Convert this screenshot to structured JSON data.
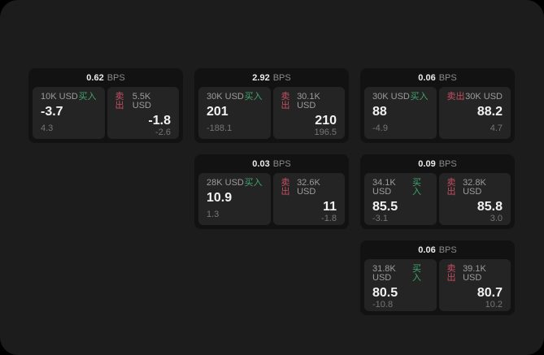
{
  "theme": {
    "surface_background": "#1c1c1c",
    "card_background": "#121212",
    "panel_background": "#242424",
    "buy_color": "#3ea66c",
    "sell_color": "#c34f63",
    "value_text_color": "#f2f2f2",
    "label_text_color": "#9c9c9c",
    "sub_text_color": "#757575",
    "bps_text_color": "#8a8a8a"
  },
  "labels": {
    "bps": "BPS",
    "buy": "买入",
    "sell": "卖出"
  },
  "cards": [
    {
      "row": 1,
      "col": 1,
      "bps": "0.62",
      "buy": {
        "amount": "10K USD",
        "value": "-3.7",
        "sub": "4.3"
      },
      "sell": {
        "amount": "5.5K USD",
        "value": "-1.8",
        "sub": "-2.6"
      }
    },
    {
      "row": 1,
      "col": 2,
      "bps": "2.92",
      "buy": {
        "amount": "30K USD",
        "value": "201",
        "sub": "-188.1"
      },
      "sell": {
        "amount": "30.1K USD",
        "value": "210",
        "sub": "196.5"
      }
    },
    {
      "row": 1,
      "col": 3,
      "bps": "0.06",
      "buy": {
        "amount": "30K USD",
        "value": "88",
        "sub": "-4.9"
      },
      "sell": {
        "amount": "30K USD",
        "value": "88.2",
        "sub": "4.7"
      }
    },
    {
      "row": 2,
      "col": 2,
      "bps": "0.03",
      "buy": {
        "amount": "28K USD",
        "value": "10.9",
        "sub": "1.3"
      },
      "sell": {
        "amount": "32.6K USD",
        "value": "11",
        "sub": "-1.8"
      }
    },
    {
      "row": 2,
      "col": 3,
      "bps": "0.09",
      "buy": {
        "amount": "34.1K USD",
        "value": "85.5",
        "sub": "-3.1"
      },
      "sell": {
        "amount": "32.8K USD",
        "value": "85.8",
        "sub": "3.0"
      }
    },
    {
      "row": 3,
      "col": 3,
      "bps": "0.06",
      "buy": {
        "amount": "31.8K USD",
        "value": "80.5",
        "sub": "-10.8"
      },
      "sell": {
        "amount": "39.1K USD",
        "value": "80.7",
        "sub": "10.2"
      }
    }
  ]
}
